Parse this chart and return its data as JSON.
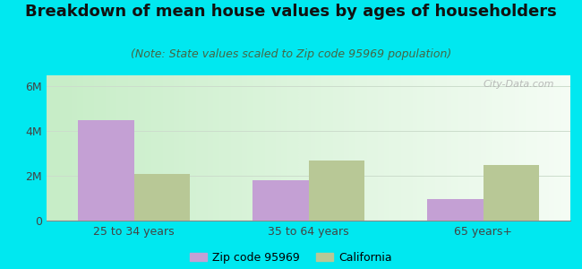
{
  "title": "Breakdown of mean house values by ages of householders",
  "subtitle": "(Note: State values scaled to Zip code 95969 population)",
  "categories": [
    "25 to 34 years",
    "35 to 64 years",
    "65 years+"
  ],
  "zip_values": [
    4500000,
    1800000,
    950000
  ],
  "ca_values": [
    2100000,
    2700000,
    2500000
  ],
  "zip_color": "#c4a0d4",
  "ca_color": "#b8c896",
  "background_outer": "#00e8f0",
  "background_inner": "#e8f5e8",
  "ylim": [
    0,
    6500000
  ],
  "yticks": [
    0,
    2000000,
    4000000,
    6000000
  ],
  "ytick_labels": [
    "0",
    "2M",
    "4M",
    "6M"
  ],
  "zip_label": "Zip code 95969",
  "ca_label": "California",
  "watermark": "City-Data.com",
  "title_fontsize": 13,
  "subtitle_fontsize": 9,
  "bar_width": 0.32
}
